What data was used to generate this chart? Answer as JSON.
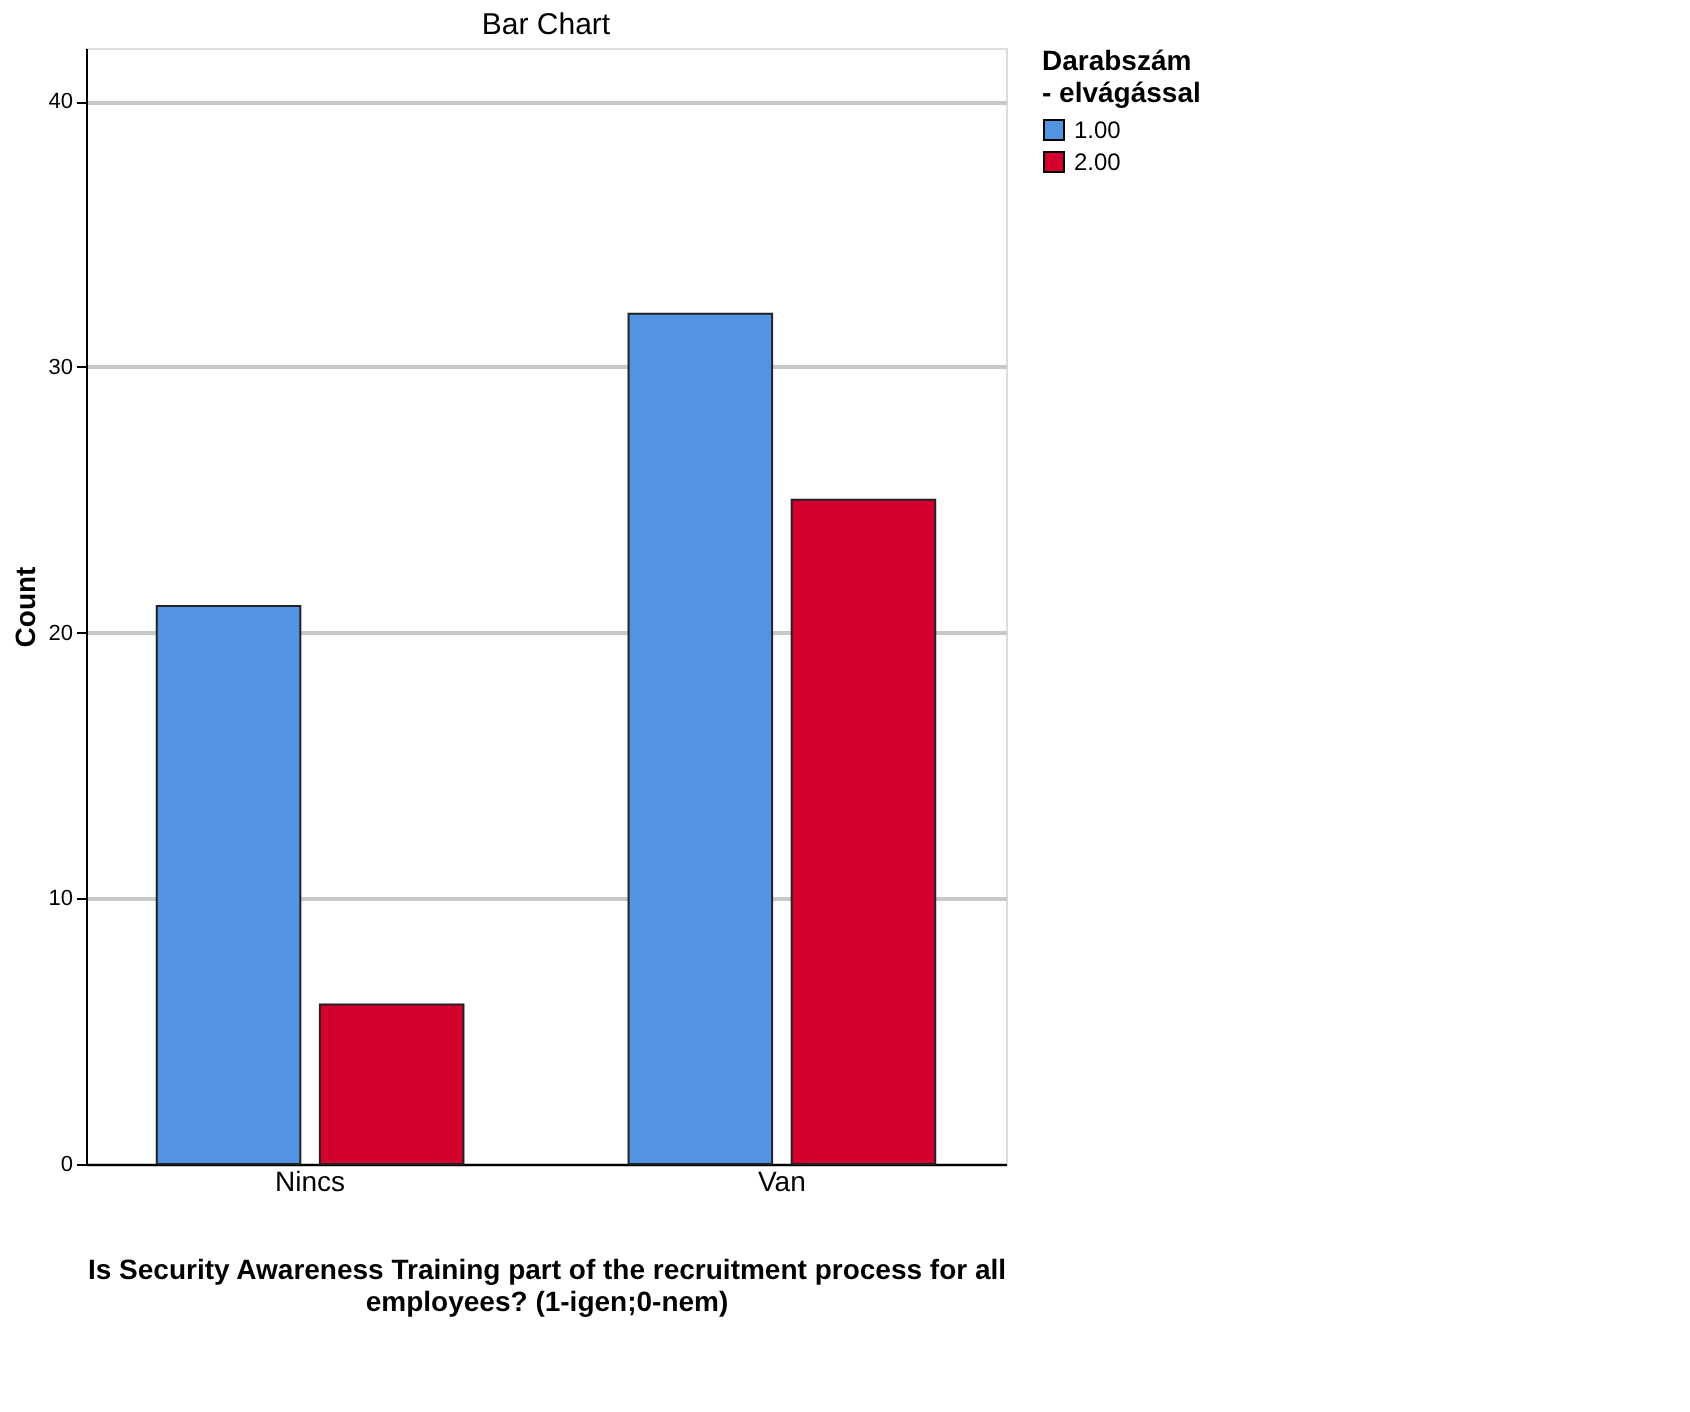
{
  "chart_data": {
    "type": "bar",
    "title": "Bar Chart",
    "xlabel": "Is Security Awareness Training part of the recruitment process for all\nemployees?  (1-igen;0-nem)",
    "ylabel": "Count",
    "legend_title": "Darabszám\n- elvágással",
    "categories": [
      "Nincs",
      "Van"
    ],
    "series": [
      {
        "name": "1.00",
        "color": "#5294e2",
        "values": [
          21,
          32
        ]
      },
      {
        "name": "2.00",
        "color": "#d4002e",
        "values": [
          6,
          25
        ]
      }
    ],
    "ylim": [
      0,
      42
    ],
    "yticks": [
      0,
      10,
      20,
      30,
      40
    ],
    "grid": "y",
    "legend": "top right"
  }
}
